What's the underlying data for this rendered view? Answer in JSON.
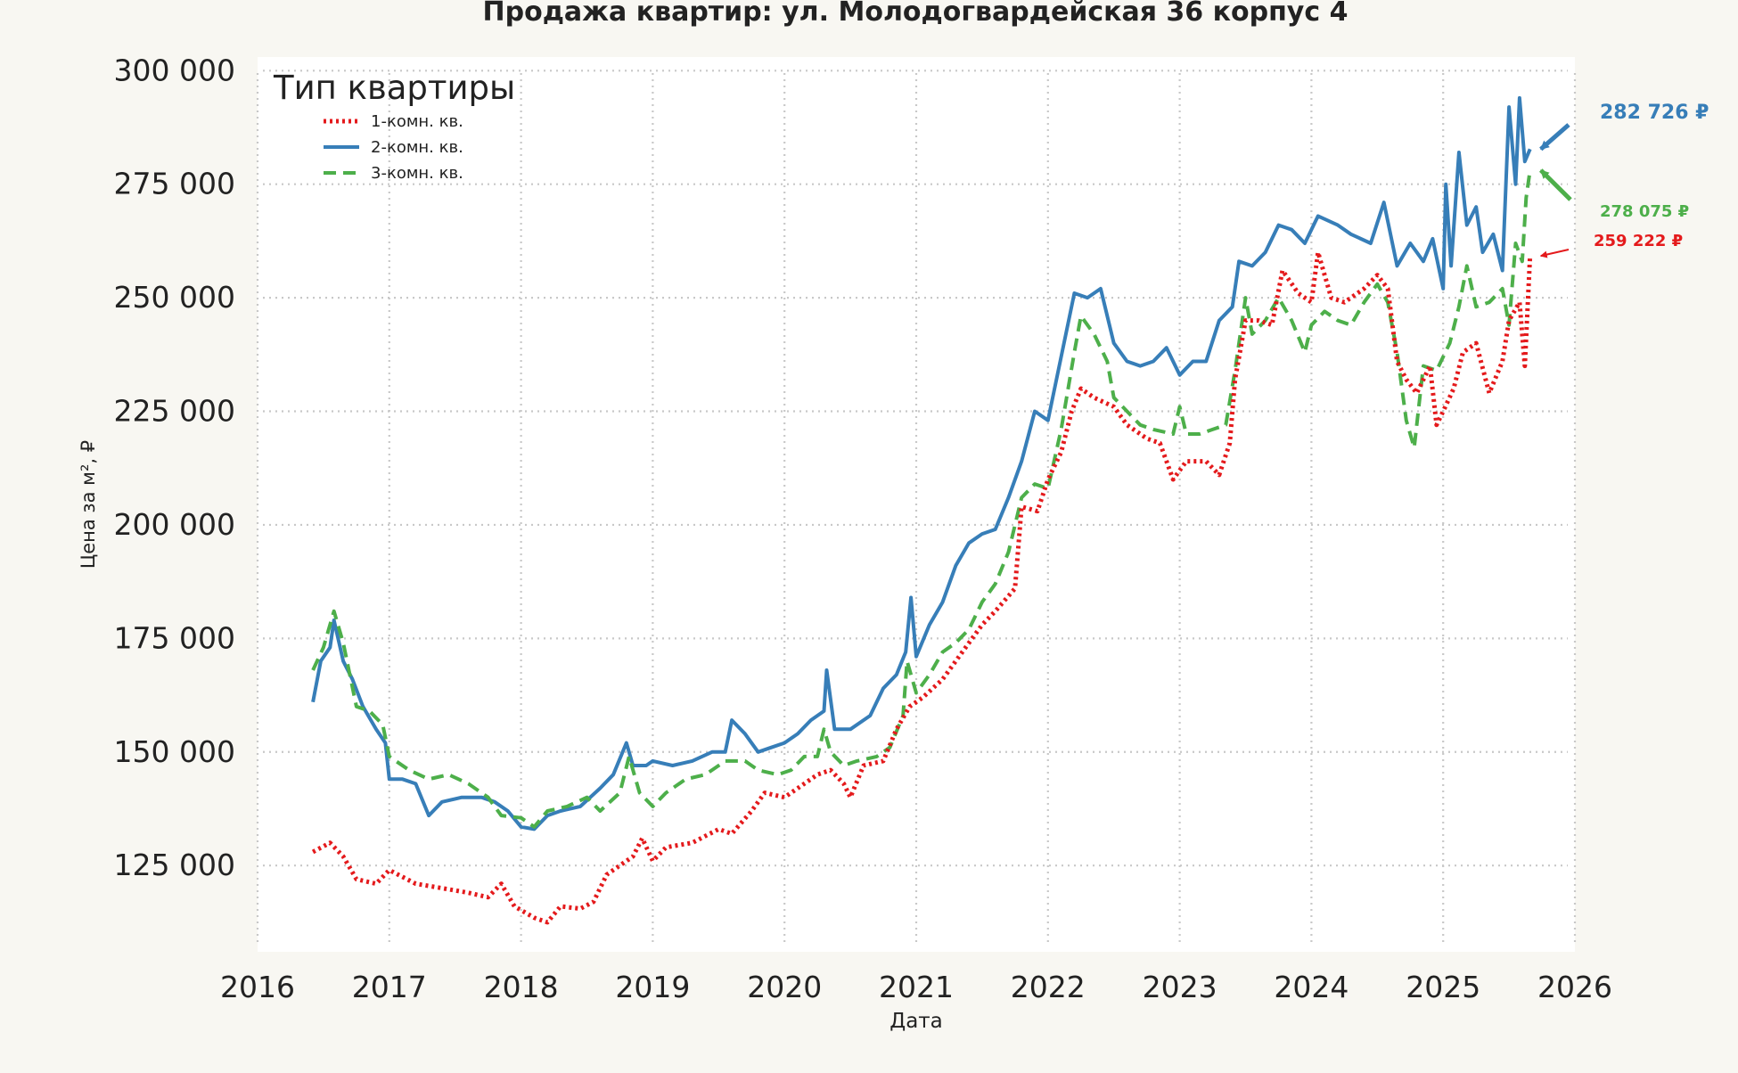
{
  "chart_data": {
    "type": "line",
    "title": "Продажа квартир: ул. Молодогвардейская 36 корпус 4",
    "xlabel": "Дата",
    "ylabel": "Цена за м², ₽",
    "xlim": [
      2016,
      2026
    ],
    "ylim": [
      106000,
      303000
    ],
    "x_ticks": [
      "2016",
      "2017",
      "2018",
      "2019",
      "2020",
      "2021",
      "2022",
      "2023",
      "2024",
      "2025",
      "2026"
    ],
    "y_ticks": [
      "125 000",
      "150 000",
      "175 000",
      "200 000",
      "225 000",
      "250 000",
      "275 000",
      "300 000"
    ],
    "grid": true,
    "legend": {
      "title": "Тип квартиры",
      "placement": "top-left"
    },
    "series": [
      {
        "name": "1-комн. кв.",
        "color": "#e41a1c",
        "style": "dotted",
        "end_label": "259 222 ₽",
        "points": [
          [
            2016.42,
            128000
          ],
          [
            2016.55,
            130000
          ],
          [
            2016.65,
            127000
          ],
          [
            2016.75,
            122000
          ],
          [
            2016.9,
            121000
          ],
          [
            2017.0,
            124000
          ],
          [
            2017.2,
            121000
          ],
          [
            2017.4,
            120000
          ],
          [
            2017.6,
            119000
          ],
          [
            2017.75,
            118000
          ],
          [
            2017.85,
            121000
          ],
          [
            2017.95,
            116000
          ],
          [
            2018.1,
            113500
          ],
          [
            2018.2,
            112500
          ],
          [
            2018.3,
            116000
          ],
          [
            2018.45,
            115500
          ],
          [
            2018.55,
            117000
          ],
          [
            2018.65,
            123000
          ],
          [
            2018.85,
            127000
          ],
          [
            2018.92,
            131000
          ],
          [
            2019.0,
            126000
          ],
          [
            2019.1,
            129000
          ],
          [
            2019.3,
            130000
          ],
          [
            2019.5,
            133000
          ],
          [
            2019.6,
            132000
          ],
          [
            2019.75,
            137000
          ],
          [
            2019.85,
            141000
          ],
          [
            2020.0,
            140000
          ],
          [
            2020.1,
            142000
          ],
          [
            2020.25,
            145000
          ],
          [
            2020.35,
            146000
          ],
          [
            2020.45,
            143000
          ],
          [
            2020.5,
            140000
          ],
          [
            2020.6,
            147000
          ],
          [
            2020.75,
            148000
          ],
          [
            2020.85,
            155000
          ],
          [
            2020.95,
            160000
          ],
          [
            2021.05,
            162000
          ],
          [
            2021.2,
            166000
          ],
          [
            2021.35,
            172000
          ],
          [
            2021.5,
            178000
          ],
          [
            2021.6,
            181000
          ],
          [
            2021.75,
            186000
          ],
          [
            2021.8,
            204000
          ],
          [
            2021.92,
            203000
          ],
          [
            2022.0,
            210000
          ],
          [
            2022.1,
            216000
          ],
          [
            2022.18,
            225000
          ],
          [
            2022.25,
            230000
          ],
          [
            2022.35,
            228000
          ],
          [
            2022.5,
            226000
          ],
          [
            2022.6,
            222000
          ],
          [
            2022.75,
            219000
          ],
          [
            2022.85,
            218000
          ],
          [
            2022.95,
            210000
          ],
          [
            2023.05,
            214000
          ],
          [
            2023.2,
            214000
          ],
          [
            2023.3,
            211000
          ],
          [
            2023.38,
            218000
          ],
          [
            2023.42,
            232000
          ],
          [
            2023.5,
            245000
          ],
          [
            2023.6,
            245000
          ],
          [
            2023.7,
            244000
          ],
          [
            2023.78,
            256000
          ],
          [
            2023.9,
            251000
          ],
          [
            2024.0,
            249000
          ],
          [
            2024.05,
            260000
          ],
          [
            2024.15,
            250000
          ],
          [
            2024.25,
            249000
          ],
          [
            2024.4,
            252000
          ],
          [
            2024.5,
            255000
          ],
          [
            2024.58,
            252000
          ],
          [
            2024.65,
            236000
          ],
          [
            2024.72,
            232000
          ],
          [
            2024.8,
            229000
          ],
          [
            2024.9,
            235000
          ],
          [
            2024.95,
            222000
          ],
          [
            2025.0,
            225000
          ],
          [
            2025.08,
            230000
          ],
          [
            2025.15,
            238000
          ],
          [
            2025.25,
            240000
          ],
          [
            2025.35,
            229000
          ],
          [
            2025.45,
            236000
          ],
          [
            2025.5,
            245000
          ],
          [
            2025.58,
            249000
          ],
          [
            2025.62,
            235000
          ],
          [
            2025.66,
            259222
          ]
        ]
      },
      {
        "name": "2-комн. кв.",
        "color": "#377eb8",
        "style": "solid",
        "end_label": "282 726 ₽",
        "points": [
          [
            2016.42,
            161000
          ],
          [
            2016.48,
            170000
          ],
          [
            2016.55,
            173000
          ],
          [
            2016.58,
            179000
          ],
          [
            2016.65,
            170000
          ],
          [
            2016.72,
            166000
          ],
          [
            2016.8,
            160000
          ],
          [
            2016.9,
            155000
          ],
          [
            2016.97,
            152000
          ],
          [
            2017.0,
            144000
          ],
          [
            2017.1,
            144000
          ],
          [
            2017.2,
            143000
          ],
          [
            2017.3,
            136000
          ],
          [
            2017.4,
            139000
          ],
          [
            2017.55,
            140000
          ],
          [
            2017.7,
            140000
          ],
          [
            2017.8,
            139000
          ],
          [
            2017.9,
            137000
          ],
          [
            2018.0,
            133500
          ],
          [
            2018.1,
            133000
          ],
          [
            2018.2,
            136000
          ],
          [
            2018.3,
            137000
          ],
          [
            2018.45,
            138000
          ],
          [
            2018.6,
            142000
          ],
          [
            2018.7,
            145000
          ],
          [
            2018.8,
            152000
          ],
          [
            2018.85,
            147000
          ],
          [
            2018.95,
            147000
          ],
          [
            2019.0,
            148000
          ],
          [
            2019.15,
            147000
          ],
          [
            2019.3,
            148000
          ],
          [
            2019.45,
            150000
          ],
          [
            2019.55,
            150000
          ],
          [
            2019.6,
            157000
          ],
          [
            2019.7,
            154000
          ],
          [
            2019.8,
            150000
          ],
          [
            2019.9,
            151000
          ],
          [
            2020.0,
            152000
          ],
          [
            2020.1,
            154000
          ],
          [
            2020.2,
            157000
          ],
          [
            2020.3,
            159000
          ],
          [
            2020.32,
            168000
          ],
          [
            2020.38,
            155000
          ],
          [
            2020.5,
            155000
          ],
          [
            2020.65,
            158000
          ],
          [
            2020.75,
            164000
          ],
          [
            2020.85,
            167000
          ],
          [
            2020.92,
            172000
          ],
          [
            2020.96,
            184000
          ],
          [
            2021.0,
            171000
          ],
          [
            2021.1,
            178000
          ],
          [
            2021.2,
            183000
          ],
          [
            2021.3,
            191000
          ],
          [
            2021.4,
            196000
          ],
          [
            2021.5,
            198000
          ],
          [
            2021.6,
            199000
          ],
          [
            2021.7,
            206000
          ],
          [
            2021.8,
            214000
          ],
          [
            2021.9,
            225000
          ],
          [
            2022.0,
            223000
          ],
          [
            2022.1,
            237000
          ],
          [
            2022.2,
            251000
          ],
          [
            2022.3,
            250000
          ],
          [
            2022.4,
            252000
          ],
          [
            2022.5,
            240000
          ],
          [
            2022.6,
            236000
          ],
          [
            2022.7,
            235000
          ],
          [
            2022.8,
            236000
          ],
          [
            2022.9,
            239000
          ],
          [
            2023.0,
            233000
          ],
          [
            2023.1,
            236000
          ],
          [
            2023.2,
            236000
          ],
          [
            2023.3,
            245000
          ],
          [
            2023.4,
            248000
          ],
          [
            2023.45,
            258000
          ],
          [
            2023.55,
            257000
          ],
          [
            2023.65,
            260000
          ],
          [
            2023.75,
            266000
          ],
          [
            2023.85,
            265000
          ],
          [
            2023.95,
            262000
          ],
          [
            2024.05,
            268000
          ],
          [
            2024.2,
            266000
          ],
          [
            2024.3,
            264000
          ],
          [
            2024.45,
            262000
          ],
          [
            2024.55,
            271000
          ],
          [
            2024.65,
            257000
          ],
          [
            2024.75,
            262000
          ],
          [
            2024.85,
            258000
          ],
          [
            2024.92,
            263000
          ],
          [
            2025.0,
            252000
          ],
          [
            2025.02,
            275000
          ],
          [
            2025.06,
            257000
          ],
          [
            2025.12,
            282000
          ],
          [
            2025.18,
            266000
          ],
          [
            2025.25,
            270000
          ],
          [
            2025.3,
            260000
          ],
          [
            2025.38,
            264000
          ],
          [
            2025.45,
            256000
          ],
          [
            2025.5,
            292000
          ],
          [
            2025.55,
            275000
          ],
          [
            2025.58,
            294000
          ],
          [
            2025.62,
            280000
          ],
          [
            2025.66,
            282726
          ]
        ]
      },
      {
        "name": "3-комн. кв.",
        "color": "#4daf4a",
        "style": "dashed",
        "end_label": "278 075 ₽",
        "points": [
          [
            2016.42,
            168000
          ],
          [
            2016.5,
            173000
          ],
          [
            2016.58,
            181000
          ],
          [
            2016.65,
            174000
          ],
          [
            2016.75,
            160000
          ],
          [
            2016.85,
            159000
          ],
          [
            2016.95,
            156000
          ],
          [
            2017.0,
            149000
          ],
          [
            2017.15,
            146000
          ],
          [
            2017.3,
            144000
          ],
          [
            2017.45,
            145000
          ],
          [
            2017.6,
            143000
          ],
          [
            2017.75,
            140000
          ],
          [
            2017.85,
            136000
          ],
          [
            2018.0,
            135500
          ],
          [
            2018.1,
            133500
          ],
          [
            2018.2,
            137000
          ],
          [
            2018.35,
            138000
          ],
          [
            2018.5,
            140000
          ],
          [
            2018.6,
            137000
          ],
          [
            2018.75,
            141000
          ],
          [
            2018.82,
            149000
          ],
          [
            2018.9,
            141000
          ],
          [
            2019.0,
            138000
          ],
          [
            2019.1,
            141000
          ],
          [
            2019.25,
            144000
          ],
          [
            2019.4,
            145000
          ],
          [
            2019.55,
            148000
          ],
          [
            2019.7,
            148000
          ],
          [
            2019.8,
            146000
          ],
          [
            2019.95,
            145000
          ],
          [
            2020.05,
            146000
          ],
          [
            2020.15,
            149000
          ],
          [
            2020.25,
            149000
          ],
          [
            2020.3,
            155000
          ],
          [
            2020.35,
            150000
          ],
          [
            2020.45,
            147000
          ],
          [
            2020.55,
            148000
          ],
          [
            2020.7,
            149000
          ],
          [
            2020.8,
            151000
          ],
          [
            2020.9,
            158000
          ],
          [
            2020.93,
            170000
          ],
          [
            2021.0,
            163000
          ],
          [
            2021.1,
            167000
          ],
          [
            2021.2,
            172000
          ],
          [
            2021.3,
            174000
          ],
          [
            2021.4,
            177000
          ],
          [
            2021.5,
            183000
          ],
          [
            2021.6,
            187000
          ],
          [
            2021.7,
            194000
          ],
          [
            2021.8,
            206000
          ],
          [
            2021.9,
            209000
          ],
          [
            2022.0,
            208000
          ],
          [
            2022.1,
            221000
          ],
          [
            2022.2,
            238000
          ],
          [
            2022.25,
            246000
          ],
          [
            2022.35,
            242000
          ],
          [
            2022.45,
            236000
          ],
          [
            2022.5,
            228000
          ],
          [
            2022.6,
            225000
          ],
          [
            2022.7,
            222000
          ],
          [
            2022.8,
            221000
          ],
          [
            2022.95,
            220000
          ],
          [
            2023.0,
            226000
          ],
          [
            2023.05,
            220000
          ],
          [
            2023.15,
            220000
          ],
          [
            2023.25,
            221000
          ],
          [
            2023.35,
            222000
          ],
          [
            2023.42,
            234000
          ],
          [
            2023.5,
            250000
          ],
          [
            2023.55,
            242000
          ],
          [
            2023.65,
            245000
          ],
          [
            2023.75,
            250000
          ],
          [
            2023.85,
            245000
          ],
          [
            2023.95,
            238000
          ],
          [
            2024.0,
            244000
          ],
          [
            2024.1,
            247000
          ],
          [
            2024.2,
            245000
          ],
          [
            2024.3,
            244000
          ],
          [
            2024.4,
            249000
          ],
          [
            2024.5,
            253000
          ],
          [
            2024.58,
            249000
          ],
          [
            2024.65,
            238000
          ],
          [
            2024.72,
            223000
          ],
          [
            2024.78,
            217000
          ],
          [
            2024.85,
            235000
          ],
          [
            2024.95,
            234000
          ],
          [
            2025.05,
            240000
          ],
          [
            2025.12,
            248000
          ],
          [
            2025.18,
            257000
          ],
          [
            2025.25,
            248000
          ],
          [
            2025.35,
            249000
          ],
          [
            2025.45,
            252000
          ],
          [
            2025.5,
            244000
          ],
          [
            2025.55,
            262000
          ],
          [
            2025.6,
            258000
          ],
          [
            2025.63,
            272000
          ],
          [
            2025.66,
            278075
          ]
        ]
      }
    ]
  }
}
